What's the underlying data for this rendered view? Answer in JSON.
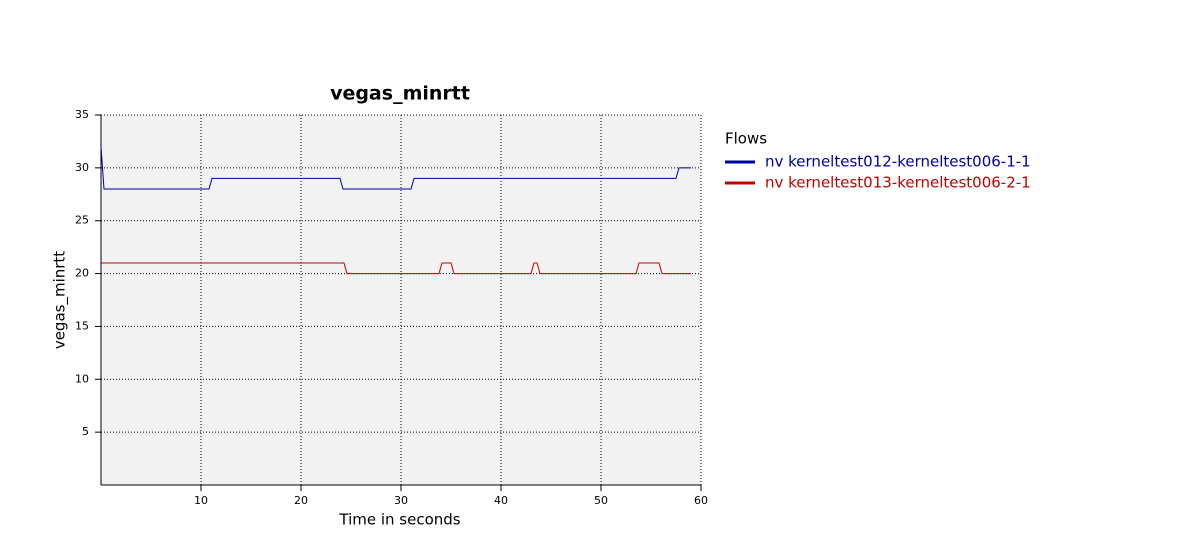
{
  "chart_data": {
    "type": "line",
    "title": "vegas_minrtt",
    "x_label": "Time in seconds",
    "y_label": "vegas_minrtt",
    "xlim": [
      0,
      60
    ],
    "ylim": [
      0,
      35
    ],
    "xticks": [
      10,
      20,
      30,
      40,
      50,
      60
    ],
    "yticks": [
      5,
      10,
      15,
      20,
      25,
      30,
      35
    ],
    "grid": true,
    "legend_title": "Flows",
    "series": [
      {
        "name": "nv kerneltest012-kerneltest006-1-1",
        "color": "#0000a0",
        "x": [
          0,
          0.3,
          10.8,
          11.1,
          23.9,
          24.2,
          31.0,
          31.3,
          57.5,
          57.8,
          59
        ],
        "values": [
          32,
          28,
          28,
          29,
          29,
          28,
          28,
          29,
          29,
          30,
          30
        ]
      },
      {
        "name": "nv kerneltest013-kerneltest006-2-1",
        "color": "#c00000",
        "x": [
          0,
          24.3,
          24.6,
          33.8,
          34.1,
          35.0,
          35.3,
          43.0,
          43.3,
          43.6,
          43.9,
          53.5,
          53.8,
          55.8,
          56.1,
          59
        ],
        "values": [
          21,
          21,
          20,
          20,
          21,
          21,
          20,
          20,
          21,
          21,
          20,
          20,
          21,
          21,
          20,
          20
        ]
      }
    ]
  }
}
